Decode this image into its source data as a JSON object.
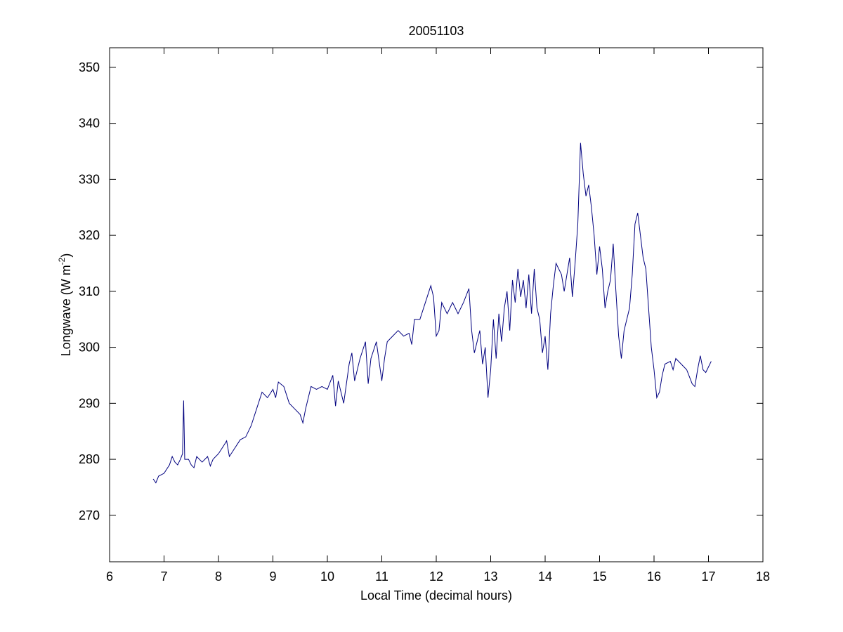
{
  "chart_data": {
    "type": "line",
    "title": "20051103",
    "xlabel": "Local Time (decimal hours)",
    "ylabel": [
      "Longwave (W m",
      "-2",
      ")"
    ],
    "xlim": [
      6,
      18
    ],
    "xticks": [
      6,
      7,
      8,
      9,
      10,
      11,
      12,
      13,
      14,
      15,
      16,
      17,
      18
    ],
    "ylim": [
      261.7,
      353.5
    ],
    "yticks": [
      270,
      280,
      290,
      300,
      310,
      320,
      330,
      340,
      350
    ],
    "grid": false,
    "series": [
      {
        "color": "#00007f",
        "x": [
          6.8,
          6.85,
          6.9,
          7.0,
          7.1,
          7.15,
          7.2,
          7.25,
          7.3,
          7.34,
          7.36,
          7.38,
          7.45,
          7.5,
          7.55,
          7.6,
          7.7,
          7.8,
          7.85,
          7.9,
          8.0,
          8.1,
          8.15,
          8.2,
          8.3,
          8.4,
          8.5,
          8.6,
          8.7,
          8.8,
          8.9,
          9.0,
          9.05,
          9.1,
          9.2,
          9.3,
          9.4,
          9.5,
          9.55,
          9.6,
          9.7,
          9.8,
          9.9,
          10.0,
          10.1,
          10.15,
          10.2,
          10.3,
          10.4,
          10.45,
          10.5,
          10.6,
          10.7,
          10.75,
          10.8,
          10.9,
          11.0,
          11.05,
          11.1,
          11.2,
          11.3,
          11.4,
          11.5,
          11.55,
          11.6,
          11.7,
          11.8,
          11.9,
          11.95,
          12.0,
          12.05,
          12.1,
          12.2,
          12.3,
          12.4,
          12.5,
          12.6,
          12.65,
          12.7,
          12.8,
          12.85,
          12.9,
          12.95,
          13.0,
          13.05,
          13.1,
          13.15,
          13.2,
          13.25,
          13.3,
          13.35,
          13.4,
          13.45,
          13.5,
          13.55,
          13.6,
          13.65,
          13.7,
          13.75,
          13.8,
          13.85,
          13.9,
          13.95,
          14.0,
          14.05,
          14.1,
          14.15,
          14.2,
          14.3,
          14.35,
          14.45,
          14.5,
          14.55,
          14.6,
          14.65,
          14.7,
          14.75,
          14.8,
          14.85,
          14.9,
          14.95,
          15.0,
          15.05,
          15.1,
          15.15,
          15.2,
          15.25,
          15.3,
          15.35,
          15.4,
          15.45,
          15.5,
          15.55,
          15.6,
          15.65,
          15.7,
          15.75,
          15.8,
          15.85,
          15.9,
          15.95,
          16.0,
          16.05,
          16.1,
          16.15,
          16.2,
          16.3,
          16.35,
          16.4,
          16.5,
          16.6,
          16.7,
          16.75,
          16.8,
          16.85,
          16.9,
          16.95,
          17.0,
          17.05
        ],
        "values": [
          276.5,
          275.8,
          277,
          277.5,
          279,
          280.5,
          279.5,
          279,
          280,
          281,
          290.5,
          280,
          280,
          279,
          278.5,
          280.5,
          279.5,
          280.5,
          278.8,
          280,
          281,
          282.5,
          283.3,
          280.5,
          282,
          283.5,
          284,
          286,
          289,
          292,
          291,
          292.5,
          291,
          293.8,
          293,
          290,
          289,
          288,
          286.5,
          289,
          293,
          292.5,
          293,
          292.5,
          295,
          289.5,
          294,
          290,
          297,
          299,
          294,
          298,
          301,
          293.5,
          298,
          301,
          294,
          298,
          301,
          302,
          303,
          302,
          302.5,
          300.5,
          305,
          305,
          308,
          311,
          309,
          302,
          303,
          308,
          306,
          308,
          306,
          308,
          310.5,
          303,
          299,
          303,
          297,
          300,
          291,
          296,
          305,
          298,
          306,
          301,
          307,
          310,
          303,
          312,
          308,
          314,
          309,
          312,
          307,
          313,
          306,
          314,
          307,
          305,
          299,
          302,
          296,
          306,
          311,
          315,
          313,
          310,
          316,
          309,
          315,
          322,
          336.5,
          331,
          327,
          329,
          325,
          320,
          313,
          318,
          314,
          307,
          310,
          312,
          318.5,
          310,
          302,
          298,
          303,
          305,
          307,
          313,
          322,
          324,
          320,
          316,
          314,
          307,
          300,
          296,
          291,
          292,
          295,
          297,
          297.5,
          296,
          298,
          297,
          296,
          293.5,
          293,
          296,
          298.5,
          296,
          295.5,
          296.5,
          297.5
        ]
      }
    ]
  }
}
